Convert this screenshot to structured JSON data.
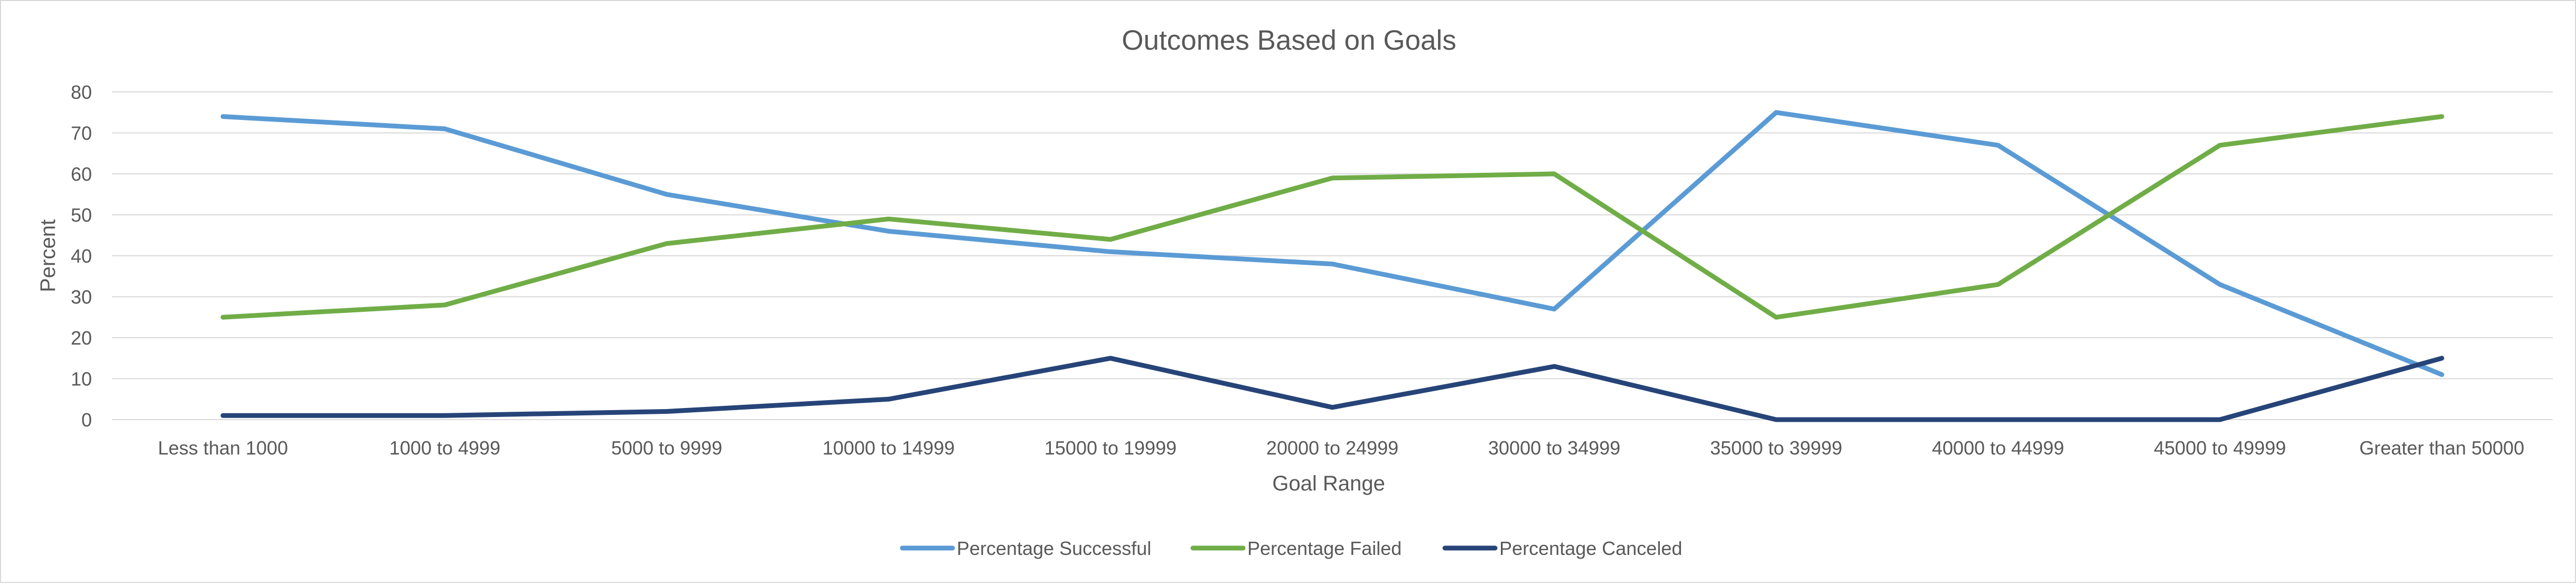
{
  "chart_data": {
    "type": "line",
    "title": "Outcomes Based on Goals",
    "xlabel": "Goal Range",
    "ylabel": "Percent",
    "ylim": [
      0,
      80
    ],
    "yticks": [
      0,
      10,
      20,
      30,
      40,
      50,
      60,
      70,
      80
    ],
    "grid": true,
    "legend_position": "bottom",
    "categories": [
      "Less than 1000",
      "1000 to 4999",
      "5000 to 9999",
      "10000 to 14999",
      "15000 to 19999",
      "20000 to 24999",
      "30000 to 34999",
      "35000 to 39999",
      "40000 to 44999",
      "45000 to 49999",
      "Greater than 50000"
    ],
    "series": [
      {
        "name": "Percentage Successful",
        "color": "#5b9bd5",
        "values": [
          74,
          71,
          55,
          46,
          41,
          38,
          27,
          75,
          67,
          33,
          11
        ]
      },
      {
        "name": "Percentage Failed",
        "color": "#70ad47",
        "values": [
          25,
          28,
          43,
          49,
          44,
          59,
          60,
          25,
          33,
          67,
          74
        ]
      },
      {
        "name": "Percentage Canceled",
        "color": "#264478",
        "values": [
          1,
          1,
          2,
          5,
          15,
          3,
          13,
          0,
          0,
          0,
          15
        ]
      }
    ]
  }
}
